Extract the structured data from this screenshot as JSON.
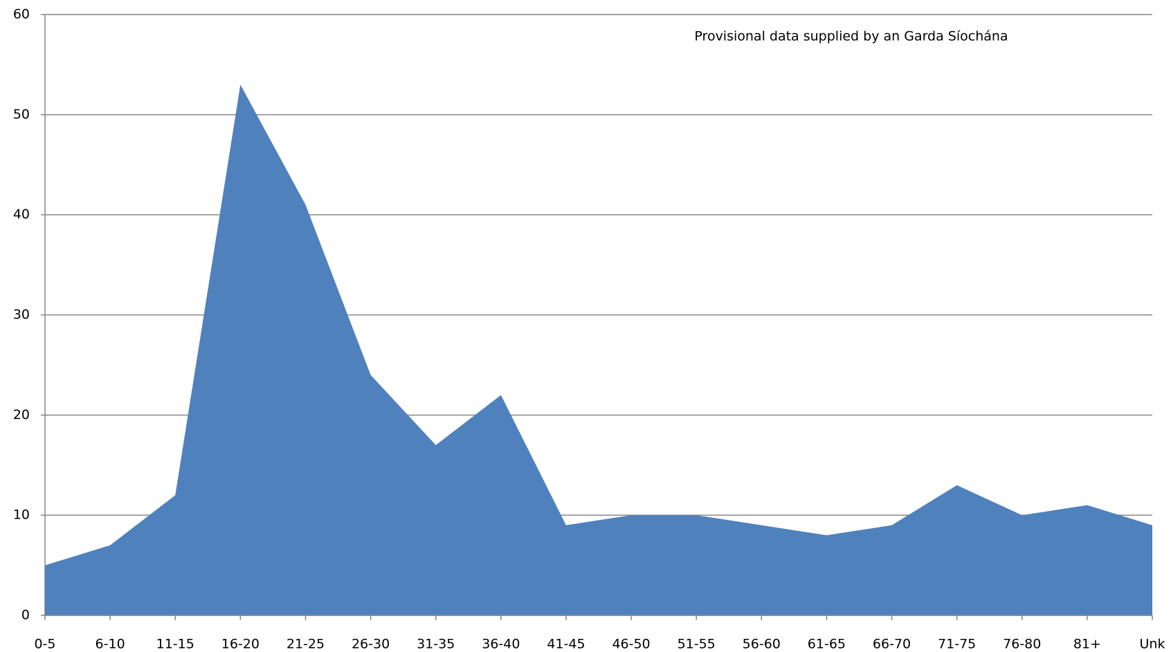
{
  "chart_data": {
    "type": "area",
    "annotation": "Provisional data supplied by an  Garda Síochána",
    "categories": [
      "0-5",
      "6-10",
      "11-15",
      "16-20",
      "21-25",
      "26-30",
      "31-35",
      "36-40",
      "41-45",
      "46-50",
      "51-55",
      "56-60",
      "61-65",
      "66-70",
      "71-75",
      "76-80",
      "81+",
      "Unk"
    ],
    "values": [
      5,
      7,
      12,
      53,
      41,
      24,
      17,
      22,
      9,
      10,
      10,
      9,
      8,
      9,
      13,
      10,
      11,
      9
    ],
    "color": "#4f81bd",
    "ylim": [
      0,
      60
    ],
    "yticks": [
      0,
      10,
      20,
      30,
      40,
      50,
      60
    ],
    "grid": true
  }
}
